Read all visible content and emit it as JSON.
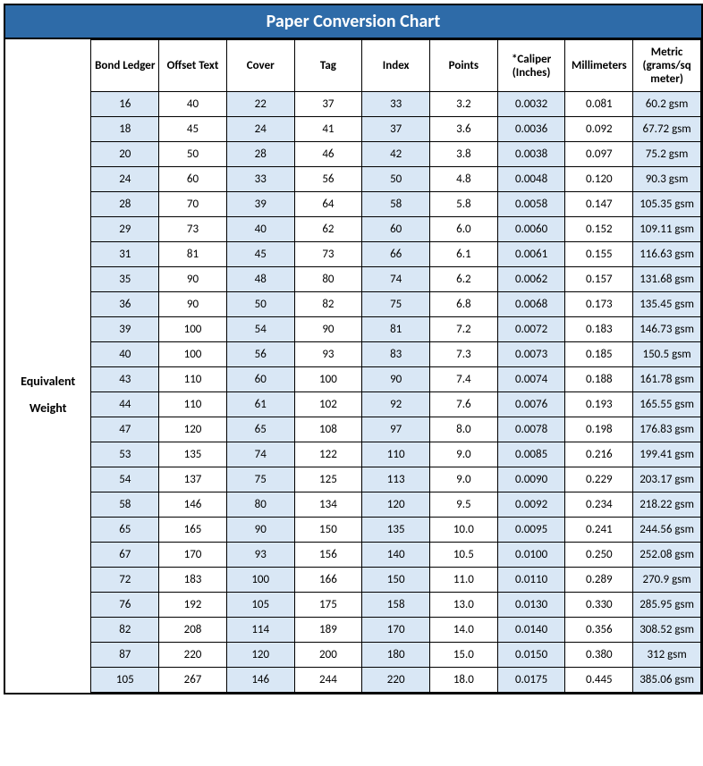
{
  "title": "Paper Conversion Chart",
  "colors": {
    "header_bg": "#2e6ba8",
    "header_text": "#ffffff",
    "shade_bg": "#d9e7f5",
    "border": "#000000",
    "background": "#ffffff"
  },
  "table": {
    "row_label_lines": [
      "Equivalent",
      "Weight"
    ],
    "columns": [
      "Bond Ledger",
      "Offset Text",
      "Cover",
      "Tag",
      "Index",
      "Points",
      "*Caliper (Inches)",
      "Millimeters",
      "Metric (grams/sq meter)"
    ],
    "shaded_columns": [
      0,
      2,
      4,
      6,
      8
    ],
    "rows": [
      [
        "16",
        "40",
        "22",
        "37",
        "33",
        "3.2",
        "0.0032",
        "0.081",
        "60.2 gsm"
      ],
      [
        "18",
        "45",
        "24",
        "41",
        "37",
        "3.6",
        "0.0036",
        "0.092",
        "67.72 gsm"
      ],
      [
        "20",
        "50",
        "28",
        "46",
        "42",
        "3.8",
        "0.0038",
        "0.097",
        "75.2 gsm"
      ],
      [
        "24",
        "60",
        "33",
        "56",
        "50",
        "4.8",
        "0.0048",
        "0.120",
        "90.3 gsm"
      ],
      [
        "28",
        "70",
        "39",
        "64",
        "58",
        "5.8",
        "0.0058",
        "0.147",
        "105.35 gsm"
      ],
      [
        "29",
        "73",
        "40",
        "62",
        "60",
        "6.0",
        "0.0060",
        "0.152",
        "109.11 gsm"
      ],
      [
        "31",
        "81",
        "45",
        "73",
        "66",
        "6.1",
        "0.0061",
        "0.155",
        "116.63 gsm"
      ],
      [
        "35",
        "90",
        "48",
        "80",
        "74",
        "6.2",
        "0.0062",
        "0.157",
        "131.68 gsm"
      ],
      [
        "36",
        "90",
        "50",
        "82",
        "75",
        "6.8",
        "0.0068",
        "0.173",
        "135.45 gsm"
      ],
      [
        "39",
        "100",
        "54",
        "90",
        "81",
        "7.2",
        "0.0072",
        "0.183",
        "146.73 gsm"
      ],
      [
        "40",
        "100",
        "56",
        "93",
        "83",
        "7.3",
        "0.0073",
        "0.185",
        "150.5 gsm"
      ],
      [
        "43",
        "110",
        "60",
        "100",
        "90",
        "7.4",
        "0.0074",
        "0.188",
        "161.78 gsm"
      ],
      [
        "44",
        "110",
        "61",
        "102",
        "92",
        "7.6",
        "0.0076",
        "0.193",
        "165.55 gsm"
      ],
      [
        "47",
        "120",
        "65",
        "108",
        "97",
        "8.0",
        "0.0078",
        "0.198",
        "176.83 gsm"
      ],
      [
        "53",
        "135",
        "74",
        "122",
        "110",
        "9.0",
        "0.0085",
        "0.216",
        "199.41 gsm"
      ],
      [
        "54",
        "137",
        "75",
        "125",
        "113",
        "9.0",
        "0.0090",
        "0.229",
        "203.17 gsm"
      ],
      [
        "58",
        "146",
        "80",
        "134",
        "120",
        "9.5",
        "0.0092",
        "0.234",
        "218.22 gsm"
      ],
      [
        "65",
        "165",
        "90",
        "150",
        "135",
        "10.0",
        "0.0095",
        "0.241",
        "244.56 gsm"
      ],
      [
        "67",
        "170",
        "93",
        "156",
        "140",
        "10.5",
        "0.0100",
        "0.250",
        "252.08 gsm"
      ],
      [
        "72",
        "183",
        "100",
        "166",
        "150",
        "11.0",
        "0.0110",
        "0.289",
        "270.9 gsm"
      ],
      [
        "76",
        "192",
        "105",
        "175",
        "158",
        "13.0",
        "0.0130",
        "0.330",
        "285.95 gsm"
      ],
      [
        "82",
        "208",
        "114",
        "189",
        "170",
        "14.0",
        "0.0140",
        "0.356",
        "308.52 gsm"
      ],
      [
        "87",
        "220",
        "120",
        "200",
        "180",
        "15.0",
        "0.0150",
        "0.380",
        "312 gsm"
      ],
      [
        "105",
        "267",
        "146",
        "244",
        "220",
        "18.0",
        "0.0175",
        "0.445",
        "385.06 gsm"
      ]
    ]
  }
}
